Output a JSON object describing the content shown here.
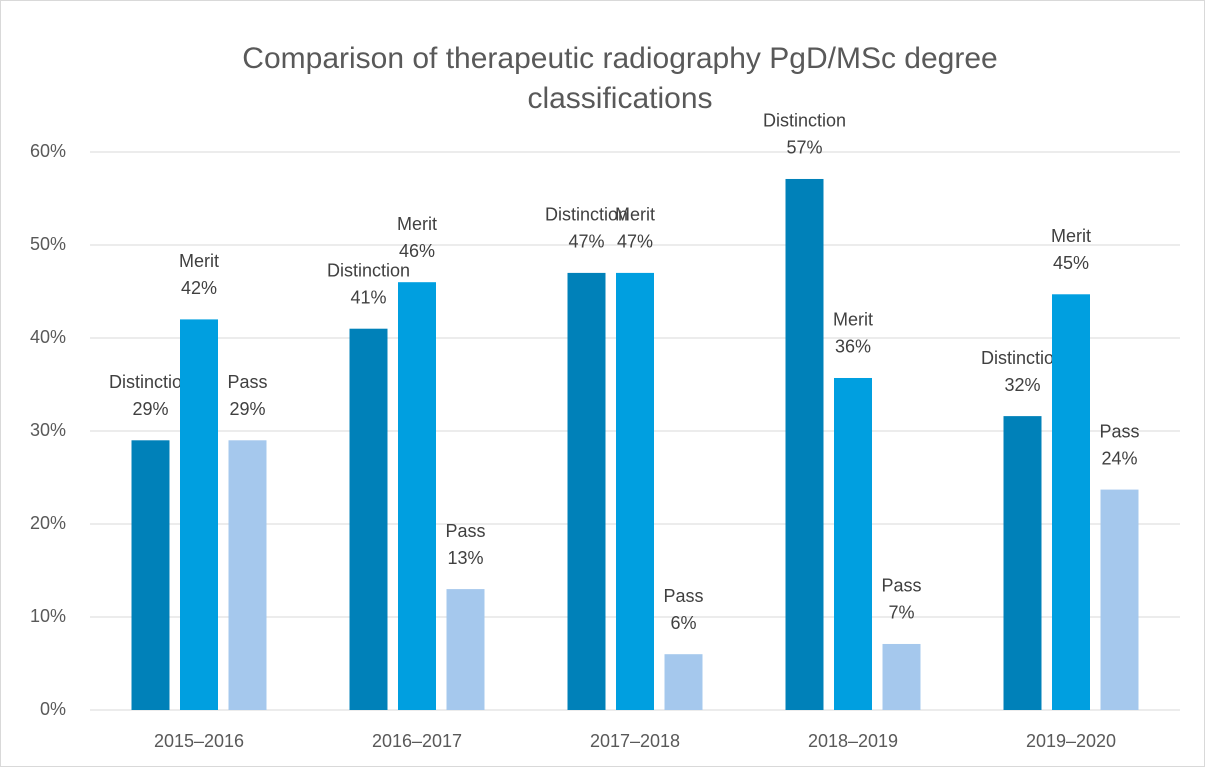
{
  "chart_data": {
    "type": "bar",
    "title": [
      "Comparison of therapeutic radiography PgD/MSc degree",
      "classifications"
    ],
    "categories": [
      "2015–2016",
      "2016–2017",
      "2017–2018",
      "2018–2019",
      "2019–2020"
    ],
    "series": [
      {
        "name": "Distinction",
        "color": "#0081b9",
        "values": [
          29,
          41,
          47,
          57.1,
          31.6
        ],
        "value_labels": [
          "29%",
          "41%",
          "47%",
          "57%",
          "32%"
        ]
      },
      {
        "name": "Merit",
        "color": "#009fe0",
        "values": [
          42,
          46,
          47,
          35.7,
          44.7
        ],
        "value_labels": [
          "42%",
          "46%",
          "47%",
          "36%",
          "45%"
        ]
      },
      {
        "name": "Pass",
        "color": "#a5c8ed",
        "values": [
          29,
          13,
          6,
          7.1,
          23.7
        ],
        "value_labels": [
          "29%",
          "13%",
          "6%",
          "7%",
          "24%"
        ]
      }
    ],
    "ylim": [
      0,
      60
    ],
    "yticks": [
      {
        "value": 0,
        "label": "0%"
      },
      {
        "value": 10,
        "label": "10%"
      },
      {
        "value": 20,
        "label": "20%"
      },
      {
        "value": 30,
        "label": "30%"
      },
      {
        "value": 40,
        "label": "40%"
      },
      {
        "value": 50,
        "label": "50%"
      },
      {
        "value": 60,
        "label": "60%"
      }
    ],
    "grid": true
  }
}
